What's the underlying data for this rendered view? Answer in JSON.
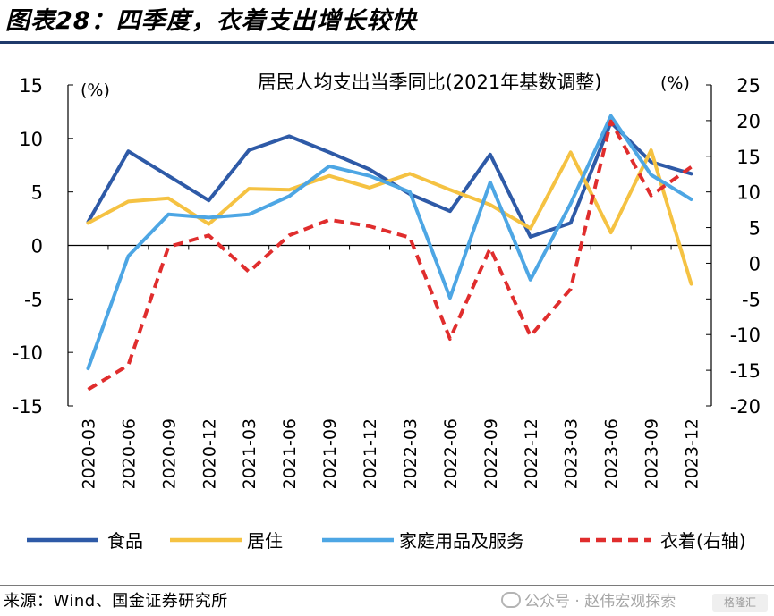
{
  "figure": {
    "title": "图表28：四季度，衣着支出增长较快",
    "source": "来源：Wind、国金证券研究所",
    "watermark": "公众号 · 赵伟宏观探索",
    "watermark_badge": "格隆汇"
  },
  "chart_data": {
    "type": "line",
    "title": "居民人均支出当季同比(2021年基数调整)",
    "left_unit": "(%)",
    "right_unit": "(%)",
    "categories": [
      "2020-03",
      "2020-06",
      "2020-09",
      "2020-12",
      "2021-03",
      "2021-06",
      "2021-09",
      "2021-12",
      "2022-03",
      "2022-06",
      "2022-09",
      "2022-12",
      "2023-03",
      "2023-06",
      "2023-09",
      "2023-12"
    ],
    "y_left": {
      "min": -15,
      "max": 15,
      "ticks": [
        15,
        10,
        5,
        0,
        -5,
        -10,
        -15
      ],
      "tick_labels": [
        "15",
        "10",
        "5",
        "0",
        "-5",
        "-10",
        "-15"
      ]
    },
    "y_right": {
      "min": -20,
      "max": 25,
      "ticks": [
        25,
        20,
        15,
        10,
        5,
        0,
        -5,
        -10,
        -15,
        -20
      ],
      "tick_labels": [
        "25",
        "20",
        "15",
        "10",
        "5",
        "0",
        "-5",
        "-10",
        "-15",
        "-20"
      ]
    },
    "legend_position": "bottom",
    "series": [
      {
        "name": "食品",
        "axis": "left",
        "color": "#2e5aa7",
        "dash": "solid",
        "values": [
          2.2,
          8.8,
          6.5,
          4.2,
          8.9,
          10.2,
          8.7,
          7.1,
          4.8,
          3.2,
          8.5,
          0.8,
          2.1,
          11.5,
          7.8,
          6.7
        ]
      },
      {
        "name": "居住",
        "axis": "left",
        "color": "#f5c242",
        "dash": "solid",
        "values": [
          2.1,
          4.1,
          4.4,
          2.0,
          5.3,
          5.2,
          6.5,
          5.4,
          6.7,
          5.2,
          3.8,
          1.6,
          8.7,
          1.2,
          8.9,
          -3.6
        ]
      },
      {
        "name": "家庭用品及服务",
        "axis": "left",
        "color": "#4da6e4",
        "dash": "solid",
        "values": [
          -11.5,
          -1.0,
          2.9,
          2.6,
          2.9,
          4.6,
          7.4,
          6.5,
          5.0,
          -4.9,
          5.9,
          -3.2,
          3.9,
          12.1,
          6.6,
          4.3
        ]
      },
      {
        "name": "衣着(右轴)",
        "axis": "right",
        "color": "#e02d2d",
        "dash": "dashed",
        "values": [
          -17.7,
          -14.3,
          2.3,
          3.9,
          -1.2,
          3.9,
          6.1,
          5.2,
          3.6,
          -10.6,
          2.1,
          -10.2,
          -3.6,
          19.9,
          9.5,
          13.5
        ]
      }
    ]
  }
}
